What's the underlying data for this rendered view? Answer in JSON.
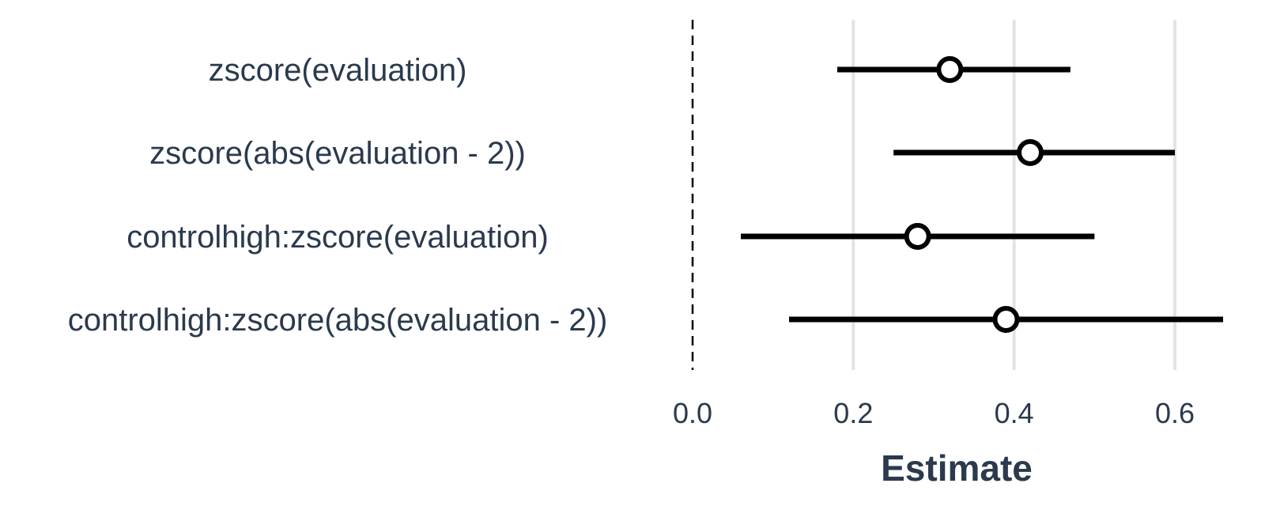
{
  "chart_data": {
    "type": "scatter",
    "xlabel": "Estimate",
    "ylabel": "",
    "xlim": [
      0,
      0.66
    ],
    "x_ticks": [
      "0.0",
      "0.2",
      "0.4",
      "0.6"
    ],
    "x_tick_values": [
      0.0,
      0.2,
      0.4,
      0.6
    ],
    "reference_line": 0.0,
    "grid": "vertical",
    "terms": [
      {
        "label": "zscore(evaluation)",
        "estimate": 0.32,
        "ci_low": 0.18,
        "ci_high": 0.47
      },
      {
        "label": "zscore(abs(evaluation - 2))",
        "estimate": 0.42,
        "ci_low": 0.25,
        "ci_high": 0.6
      },
      {
        "label": "controlhigh:zscore(evaluation)",
        "estimate": 0.28,
        "ci_low": 0.06,
        "ci_high": 0.5
      },
      {
        "label": "controlhigh:zscore(abs(evaluation - 2))",
        "estimate": 0.39,
        "ci_low": 0.12,
        "ci_high": 0.66
      }
    ]
  }
}
